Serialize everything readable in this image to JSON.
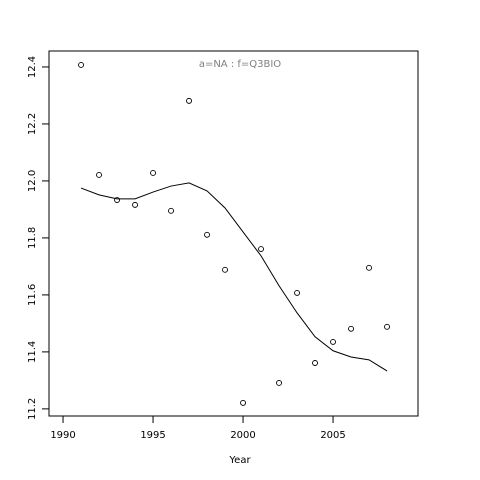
{
  "chart_data": {
    "type": "scatter",
    "title": "a=NA  :  f=Q3BIO",
    "x_label": "Year",
    "x": [
      1991,
      1992,
      1993,
      1994,
      1995,
      1996,
      1997,
      1998,
      1999,
      2000,
      2001,
      2002,
      2003,
      2004,
      2005,
      2006,
      2007,
      2008
    ],
    "series": [
      {
        "style": "points",
        "color": "#000000",
        "values": [
          12.407,
          12.021,
          11.933,
          11.916,
          12.028,
          11.895,
          12.281,
          11.811,
          11.688,
          11.221,
          11.761,
          11.291,
          11.607,
          11.361,
          11.435,
          11.481,
          11.695,
          11.488
        ]
      },
      {
        "style": "line",
        "color": "#000000",
        "values": [
          11.975,
          11.951,
          11.937,
          11.937,
          11.961,
          11.982,
          11.993,
          11.965,
          11.905,
          11.821,
          11.737,
          11.632,
          11.537,
          11.453,
          11.404,
          11.382,
          11.372,
          11.333
        ]
      }
    ],
    "xlim": [
      1989.22,
      2009.72
    ],
    "ylim": [
      11.175,
      12.456
    ],
    "xticks": [
      1990,
      1995,
      2000,
      2005
    ],
    "yticks": [
      11.2,
      11.4,
      11.6,
      11.8,
      {
        "value": 12,
        "label": "12.0"
      },
      12.2,
      12.4
    ]
  }
}
